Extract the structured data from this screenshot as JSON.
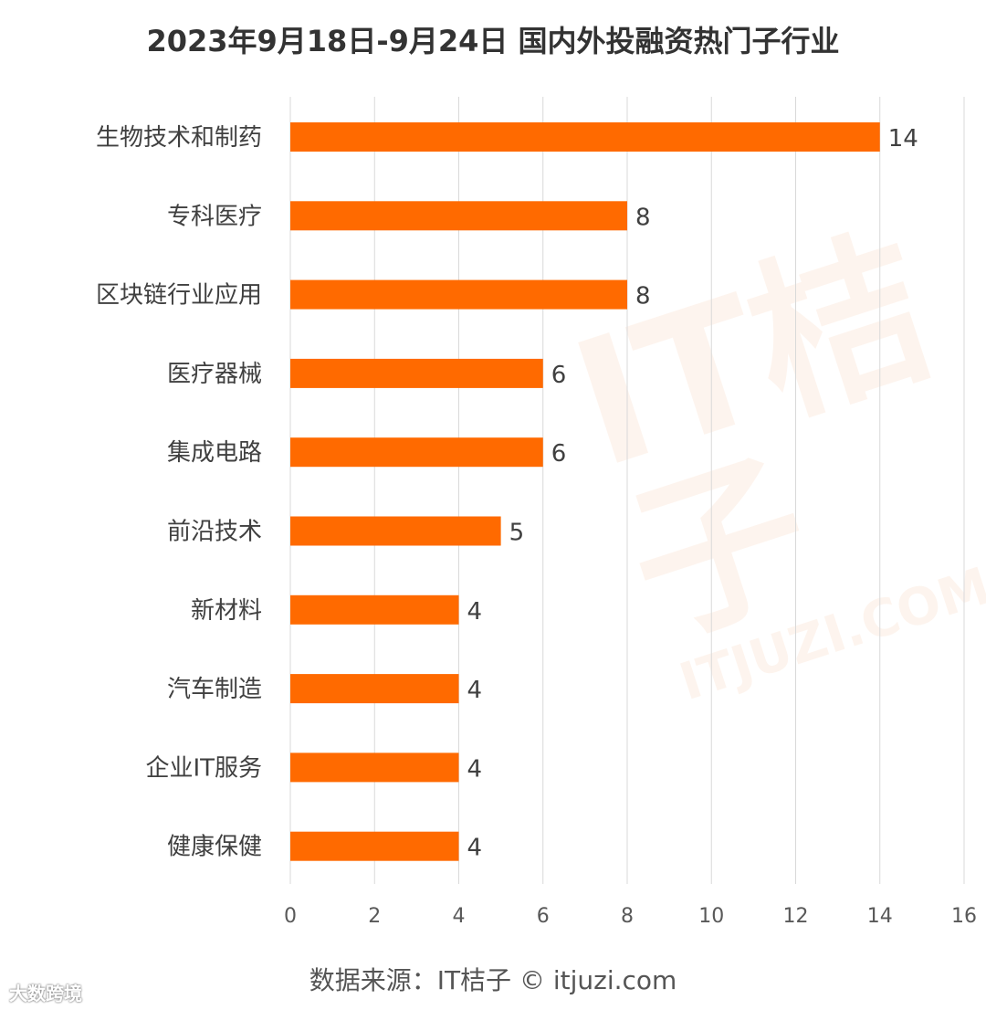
{
  "chart_data": {
    "type": "bar",
    "orientation": "horizontal",
    "title": "2023年9月18日-9月24日 国内外投融资热门子行业",
    "categories": [
      "生物技术和制药",
      "专科医疗",
      "区块链行业应用",
      "医疗器械",
      "集成电路",
      "前沿技术",
      "新材料",
      "汽车制造",
      "企业IT服务",
      "健康保健"
    ],
    "values": [
      14,
      8,
      8,
      6,
      6,
      5,
      4,
      4,
      4,
      4
    ],
    "xlim": [
      0,
      16
    ],
    "xticks": [
      0,
      2,
      4,
      6,
      8,
      10,
      12,
      14,
      16
    ],
    "grid": true,
    "legend": "none",
    "bar_color": "#ff6a00"
  },
  "source": "数据来源：IT桔子 © itjuzi.com",
  "watermark": {
    "logo_text": "IT桔子",
    "logo_url_text": "ITJUZI.COM",
    "brand": "大数跨境"
  }
}
